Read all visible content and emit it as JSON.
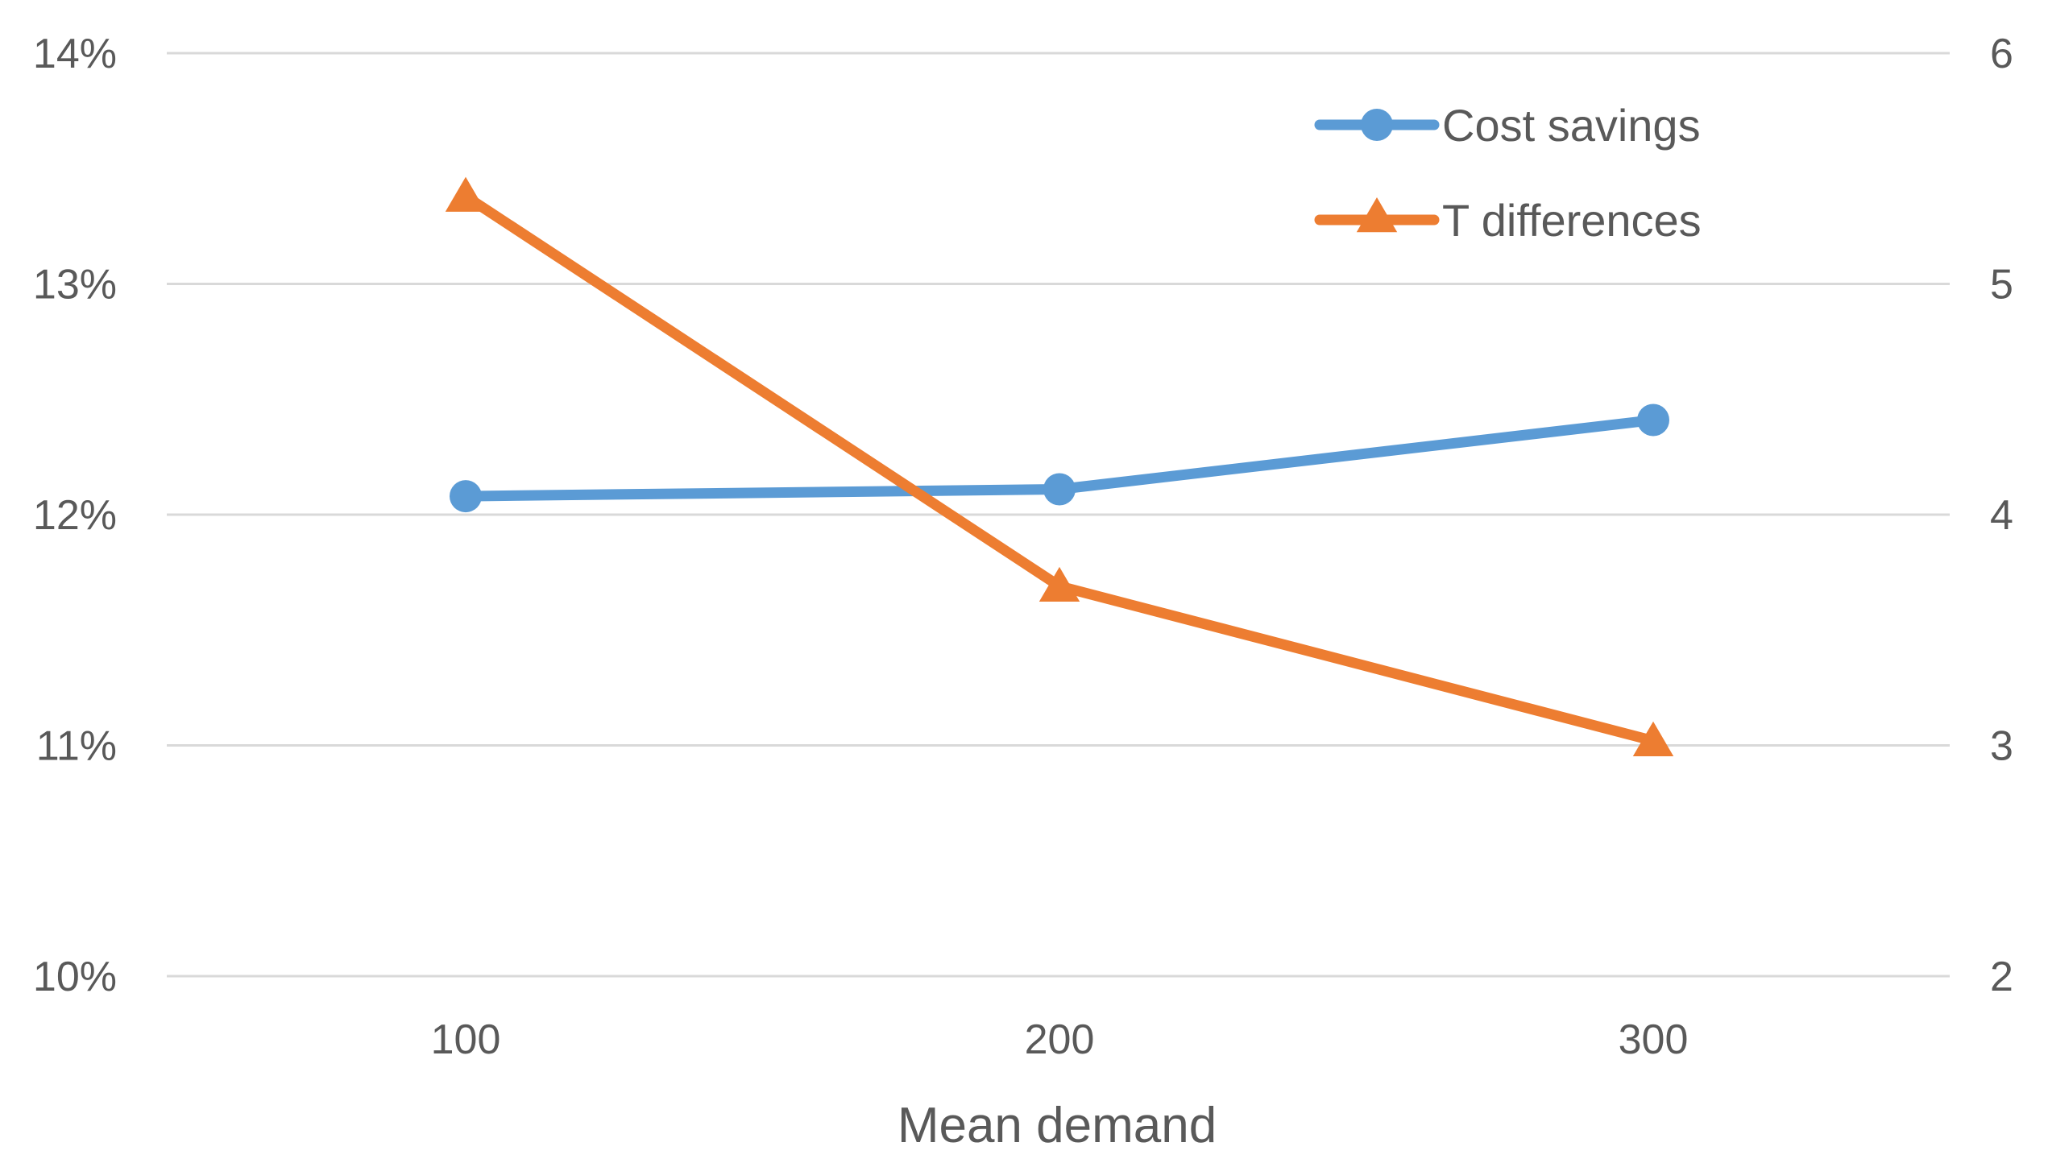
{
  "chart_data": {
    "type": "line",
    "title": "",
    "xlabel": "Mean demand",
    "ylabel_left": "",
    "ylabel_right": "",
    "x": [
      100,
      200,
      300
    ],
    "x_tick_labels": [
      "100",
      "200",
      "300"
    ],
    "y_left": {
      "min": 0.1,
      "max": 0.14,
      "step": 0.01,
      "tick_labels": [
        "10%",
        "11%",
        "12%",
        "13%",
        "14%"
      ]
    },
    "y_right": {
      "min": 2,
      "max": 6,
      "step": 1,
      "tick_labels": [
        "2",
        "3",
        "4",
        "5",
        "6"
      ]
    },
    "series": [
      {
        "name": "Cost savings",
        "axis": "left",
        "marker": "circle",
        "color": "#5B9BD5",
        "values": [
          0.1208,
          0.1211,
          0.1241
        ]
      },
      {
        "name": "T differences",
        "axis": "right",
        "marker": "triangle",
        "color": "#ED7D31",
        "values": [
          5.38,
          3.69,
          3.02
        ]
      }
    ],
    "grid": true,
    "legend": "top-right"
  }
}
